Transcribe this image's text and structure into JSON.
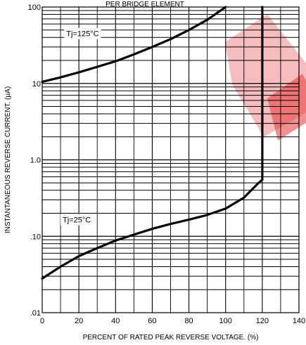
{
  "chart_data": {
    "type": "line",
    "title": "PER BRIDGE ELEMENT",
    "xlabel": "PERCENT OF RATED PEAK REVERSE VOLTAGE. (%)",
    "ylabel": "INSTANTANEOUS REVERSE CURRENT. (μA)",
    "x_ticks": [
      "0",
      "20",
      "40",
      "60",
      "80",
      "100",
      "120",
      "140"
    ],
    "y_ticks": [
      ".01",
      ".10",
      "1.0",
      "10",
      "100"
    ],
    "xlim": [
      0,
      140
    ],
    "ylim": [
      0.01,
      100
    ],
    "y_scale": "log",
    "grid": true,
    "series": [
      {
        "name": "",
        "annotation": "Tj=125°C",
        "x": [
          0,
          10,
          20,
          30,
          40,
          50,
          60,
          70,
          80,
          90,
          100
        ],
        "y": [
          10.5,
          12,
          14,
          16.5,
          19.5,
          24,
          30,
          38,
          50,
          68,
          100
        ]
      },
      {
        "name": "",
        "annotation": "Tj=25°C",
        "x": [
          0,
          10,
          20,
          30,
          40,
          50,
          60,
          70,
          80,
          90,
          100,
          110,
          118,
          120,
          120
        ],
        "y": [
          0.028,
          0.04,
          0.055,
          0.07,
          0.088,
          0.105,
          0.125,
          0.145,
          0.165,
          0.19,
          0.23,
          0.32,
          0.5,
          0.55,
          100
        ]
      }
    ],
    "annotations": {
      "tj125": {
        "text": "Tj=125°C",
        "x": 12,
        "y": 45
      },
      "tj25": {
        "text": "Tj=25°C",
        "x": 10,
        "y": 0.165
      }
    }
  }
}
